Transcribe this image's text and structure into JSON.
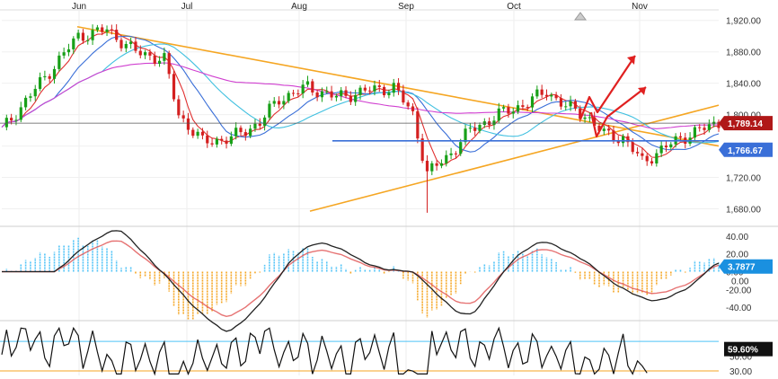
{
  "chart_data": {
    "type": "candlestick",
    "x_axis": {
      "months": [
        "Jun",
        "Jul",
        "Aug",
        "Sep",
        "Oct",
        "Nov"
      ]
    },
    "price_panel": {
      "ylim": [
        1660,
        1930
      ],
      "y_ticks": [
        "1,920.00",
        "1,880.00",
        "1,840.00",
        "1,800.00",
        "1,760.00",
        "1,720.00",
        "1,680.00"
      ],
      "y_tick_values": [
        1920,
        1880,
        1840,
        1800,
        1760,
        1720,
        1680
      ],
      "current_price_label": "1,789.14",
      "current_price_value": 1789.14,
      "support_label": "1,766.67",
      "support_value": 1766.67,
      "candles": [],
      "moving_averages": [
        {
          "color": "#e03030"
        },
        {
          "color": "#3a6fd8"
        },
        {
          "color": "#40c0e0"
        },
        {
          "color": "#d040d0"
        }
      ],
      "trendlines": {
        "color": "#f5a623",
        "upper_descending": {
          "from": [
            "Jun",
            1915
          ],
          "to": [
            "Nov",
            1765
          ]
        },
        "lower_ascending": {
          "from": [
            "Aug",
            1675
          ],
          "to": [
            "Nov",
            1815
          ]
        }
      },
      "projection_arrows_color": "#e02020"
    },
    "macd_panel": {
      "ylim": [
        -50,
        48
      ],
      "y_ticks": [
        "40.00",
        "20.00",
        "0.00",
        "-20.00",
        "-40.00"
      ],
      "y_tick_values": [
        40,
        20,
        0,
        -20,
        -40
      ],
      "value_label_1": "3.7877",
      "value_label_2": "0.00"
    },
    "rsi_panel": {
      "ylim": [
        24,
        92
      ],
      "y_ticks": [
        "50.00",
        "30.00"
      ],
      "y_tick_values": [
        50,
        30
      ],
      "overbought": 70,
      "oversold": 30,
      "value_label": "59.60%",
      "value": 59.6
    },
    "colors": {
      "up": "#18a018",
      "down": "#d42020",
      "price_badge": "#b01818",
      "support_badge": "#3a6fd8",
      "macd_badge": "#1a90e0"
    }
  }
}
